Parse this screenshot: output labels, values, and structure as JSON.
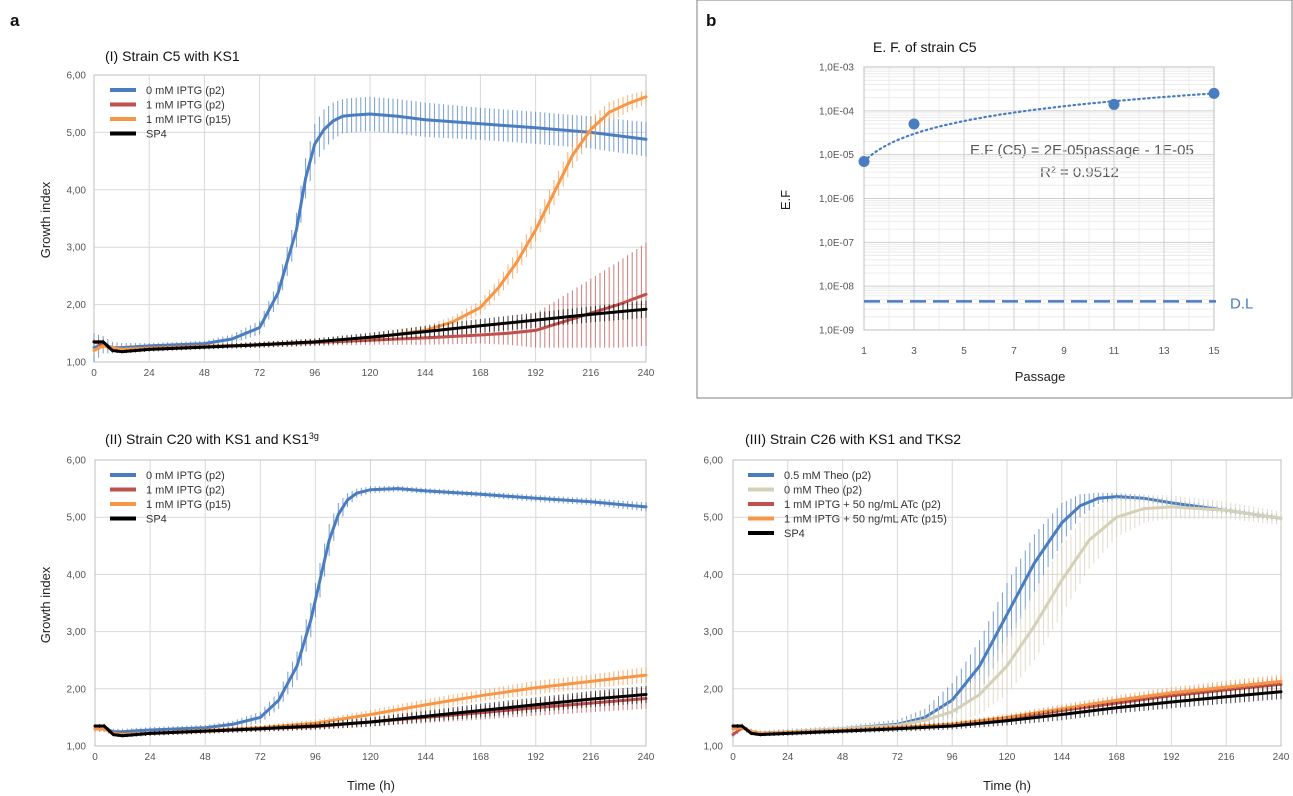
{
  "figure": {
    "panel_a_letter": "a",
    "panel_b_letter": "b"
  },
  "colors": {
    "blue": "#4a7cc0",
    "red": "#c0504d",
    "orange": "#f79646",
    "black": "#000000",
    "beige": "#d5d0b8",
    "grid": "#d9d9d9",
    "dot_blue": "#4a7cc0"
  },
  "chart_data": [
    {
      "id": "I",
      "type": "line",
      "title": "(I) Strain C5 with KS1",
      "xlabel": "",
      "ylabel": "Growth index",
      "xlim": [
        0,
        240
      ],
      "ylim": [
        1,
        6
      ],
      "x_ticks": [
        "0",
        "24",
        "48",
        "72",
        "96",
        "120",
        "144",
        "168",
        "192",
        "216",
        "240"
      ],
      "y_ticks": [
        "1,00",
        "2,00",
        "3,00",
        "4,00",
        "5,00",
        "6,00"
      ],
      "grid": true,
      "legend": "top-left",
      "series": [
        {
          "name": "0 mM IPTG (p2)",
          "color": "#4a7cc0",
          "x": [
            0,
            4,
            8,
            12,
            24,
            48,
            60,
            72,
            80,
            88,
            92,
            96,
            100,
            104,
            108,
            112,
            120,
            132,
            144,
            168,
            192,
            216,
            240
          ],
          "y": [
            1.25,
            1.3,
            1.25,
            1.25,
            1.28,
            1.32,
            1.4,
            1.6,
            2.2,
            3.3,
            4.2,
            4.8,
            5.05,
            5.2,
            5.28,
            5.3,
            5.32,
            5.28,
            5.22,
            5.15,
            5.08,
            5.0,
            4.88
          ],
          "err": [
            0.25,
            0.15,
            0.1,
            0.08,
            0.05,
            0.05,
            0.08,
            0.12,
            0.2,
            0.3,
            0.35,
            0.35,
            0.35,
            0.32,
            0.3,
            0.3,
            0.3,
            0.3,
            0.3,
            0.28,
            0.28,
            0.28,
            0.3
          ]
        },
        {
          "name": "1 mM IPTG (p2)",
          "color": "#c0504d",
          "x": [
            0,
            4,
            8,
            12,
            24,
            48,
            72,
            96,
            120,
            144,
            168,
            180,
            192,
            204,
            216,
            228,
            240
          ],
          "y": [
            1.35,
            1.3,
            1.22,
            1.2,
            1.24,
            1.27,
            1.3,
            1.34,
            1.38,
            1.42,
            1.47,
            1.5,
            1.55,
            1.7,
            1.85,
            2.0,
            2.18
          ],
          "err": [
            0.05,
            0.05,
            0.04,
            0.04,
            0.04,
            0.04,
            0.05,
            0.06,
            0.08,
            0.12,
            0.15,
            0.2,
            0.3,
            0.45,
            0.6,
            0.75,
            0.9
          ]
        },
        {
          "name": "1 mM IPTG (p15)",
          "color": "#f79646",
          "x": [
            0,
            4,
            8,
            12,
            24,
            48,
            72,
            96,
            120,
            144,
            156,
            168,
            176,
            184,
            192,
            200,
            208,
            216,
            224,
            232,
            240
          ],
          "y": [
            1.2,
            1.28,
            1.25,
            1.22,
            1.24,
            1.27,
            1.3,
            1.35,
            1.42,
            1.55,
            1.7,
            1.95,
            2.3,
            2.75,
            3.3,
            3.95,
            4.6,
            5.05,
            5.35,
            5.5,
            5.62
          ],
          "err": [
            0.05,
            0.05,
            0.04,
            0.04,
            0.04,
            0.05,
            0.05,
            0.05,
            0.06,
            0.08,
            0.1,
            0.12,
            0.15,
            0.2,
            0.2,
            0.22,
            0.22,
            0.2,
            0.18,
            0.15,
            0.12
          ]
        },
        {
          "name": "SP4",
          "color": "#000000",
          "x": [
            0,
            4,
            8,
            12,
            24,
            48,
            72,
            96,
            120,
            144,
            168,
            192,
            216,
            240
          ],
          "y": [
            1.35,
            1.35,
            1.2,
            1.18,
            1.22,
            1.26,
            1.3,
            1.35,
            1.43,
            1.53,
            1.63,
            1.73,
            1.83,
            1.92
          ],
          "err": [
            0.03,
            0.04,
            0.03,
            0.03,
            0.04,
            0.04,
            0.05,
            0.06,
            0.08,
            0.1,
            0.12,
            0.13,
            0.14,
            0.15
          ]
        }
      ],
      "legend_entries": [
        "0 mM IPTG (p2)",
        "1 mM IPTG (p2)",
        "1 mM IPTG (p15)",
        "SP4"
      ]
    },
    {
      "id": "II",
      "type": "line",
      "title_main": "(II) Strain C20 with KS1 and  KS1",
      "title_sup": "3g",
      "xlabel": "",
      "ylabel": "Growth index",
      "xlim": [
        0,
        240
      ],
      "ylim": [
        1,
        6
      ],
      "x_ticks": [
        "0",
        "24",
        "48",
        "72",
        "96",
        "120",
        "144",
        "168",
        "192",
        "216",
        "240"
      ],
      "y_ticks": [
        "1,00",
        "2,00",
        "3,00",
        "4,00",
        "5,00",
        "6,00"
      ],
      "grid": true,
      "legend": "top-left",
      "series": [
        {
          "name": "0 mM IPTG (p2)",
          "color": "#4a7cc0",
          "x": [
            0,
            4,
            8,
            12,
            24,
            48,
            60,
            72,
            80,
            88,
            94,
            98,
            102,
            106,
            110,
            114,
            120,
            132,
            144,
            168,
            192,
            216,
            240
          ],
          "y": [
            1.3,
            1.3,
            1.25,
            1.25,
            1.28,
            1.32,
            1.38,
            1.5,
            1.8,
            2.4,
            3.2,
            3.9,
            4.6,
            5.05,
            5.3,
            5.42,
            5.48,
            5.5,
            5.46,
            5.4,
            5.33,
            5.27,
            5.18
          ],
          "err": [
            0.05,
            0.05,
            0.05,
            0.05,
            0.05,
            0.05,
            0.06,
            0.1,
            0.15,
            0.25,
            0.3,
            0.3,
            0.28,
            0.2,
            0.12,
            0.08,
            0.06,
            0.05,
            0.05,
            0.05,
            0.06,
            0.06,
            0.08
          ]
        },
        {
          "name": "1 mM IPTG (p2)",
          "color": "#c0504d",
          "x": [
            0,
            4,
            8,
            12,
            24,
            48,
            72,
            96,
            120,
            144,
            168,
            192,
            216,
            240
          ],
          "y": [
            1.3,
            1.3,
            1.22,
            1.2,
            1.22,
            1.26,
            1.3,
            1.34,
            1.42,
            1.5,
            1.58,
            1.67,
            1.75,
            1.83
          ],
          "err": [
            0.05,
            0.05,
            0.04,
            0.04,
            0.04,
            0.05,
            0.05,
            0.06,
            0.08,
            0.1,
            0.12,
            0.14,
            0.16,
            0.18
          ]
        },
        {
          "name": "1 mM IPTG (p15)",
          "color": "#f79646",
          "x": [
            0,
            4,
            8,
            12,
            24,
            48,
            72,
            96,
            120,
            144,
            168,
            192,
            216,
            240
          ],
          "y": [
            1.3,
            1.3,
            1.22,
            1.2,
            1.22,
            1.27,
            1.32,
            1.4,
            1.55,
            1.72,
            1.88,
            2.02,
            2.13,
            2.24
          ],
          "err": [
            0.05,
            0.05,
            0.04,
            0.04,
            0.04,
            0.05,
            0.05,
            0.06,
            0.08,
            0.1,
            0.1,
            0.12,
            0.12,
            0.14
          ]
        },
        {
          "name": "SP4",
          "color": "#000000",
          "x": [
            0,
            4,
            8,
            12,
            24,
            48,
            72,
            96,
            120,
            144,
            168,
            192,
            216,
            240
          ],
          "y": [
            1.35,
            1.35,
            1.2,
            1.18,
            1.22,
            1.26,
            1.3,
            1.35,
            1.42,
            1.52,
            1.62,
            1.72,
            1.82,
            1.9
          ],
          "err": [
            0.03,
            0.04,
            0.03,
            0.03,
            0.04,
            0.04,
            0.05,
            0.06,
            0.08,
            0.1,
            0.12,
            0.13,
            0.14,
            0.15
          ]
        }
      ],
      "legend_entries": [
        "0 mM IPTG (p2)",
        "1 mM IPTG (p2)",
        "1 mM IPTG (p15)",
        "SP4"
      ]
    },
    {
      "id": "III",
      "type": "line",
      "title": "(III) Strain C26 with KS1 and  TKS2",
      "xlabel": "Time (h)",
      "ylabel": "",
      "xlim": [
        0,
        240
      ],
      "ylim": [
        1,
        6
      ],
      "x_ticks": [
        "0",
        "24",
        "48",
        "72",
        "96",
        "120",
        "144",
        "168",
        "192",
        "216",
        "240"
      ],
      "y_ticks": [
        "1,00",
        "2,00",
        "3,00",
        "4,00",
        "5,00",
        "6,00"
      ],
      "grid": true,
      "legend": "top-left",
      "series": [
        {
          "name": "0.5 mM Theo (p2)",
          "color": "#4a7cc0",
          "x": [
            0,
            4,
            8,
            12,
            24,
            48,
            72,
            84,
            96,
            108,
            120,
            132,
            144,
            152,
            160,
            168,
            180,
            192,
            216,
            240
          ],
          "y": [
            1.3,
            1.32,
            1.25,
            1.22,
            1.25,
            1.3,
            1.38,
            1.5,
            1.8,
            2.4,
            3.3,
            4.2,
            4.9,
            5.2,
            5.33,
            5.36,
            5.33,
            5.25,
            5.12,
            4.98
          ],
          "err": [
            0.05,
            0.05,
            0.05,
            0.05,
            0.05,
            0.05,
            0.08,
            0.15,
            0.3,
            0.45,
            0.55,
            0.5,
            0.35,
            0.2,
            0.1,
            0.06,
            0.06,
            0.06,
            0.06,
            0.06
          ]
        },
        {
          "name": "0 mM Theo (p2)",
          "color": "#d5d0b8",
          "x": [
            0,
            4,
            8,
            12,
            24,
            48,
            72,
            84,
            96,
            108,
            120,
            132,
            144,
            156,
            168,
            180,
            192,
            216,
            240
          ],
          "y": [
            1.3,
            1.32,
            1.25,
            1.22,
            1.25,
            1.3,
            1.36,
            1.45,
            1.6,
            1.9,
            2.4,
            3.1,
            3.9,
            4.6,
            5.0,
            5.15,
            5.18,
            5.12,
            4.98
          ],
          "err": [
            0.05,
            0.05,
            0.05,
            0.05,
            0.05,
            0.05,
            0.06,
            0.12,
            0.2,
            0.35,
            0.5,
            0.6,
            0.6,
            0.5,
            0.35,
            0.25,
            0.2,
            0.15,
            0.12
          ]
        },
        {
          "name": "1 mM IPTG + 50 ng/mL ATc (p2)",
          "color": "#c0504d",
          "x": [
            0,
            4,
            8,
            12,
            24,
            48,
            72,
            96,
            120,
            144,
            168,
            192,
            216,
            240
          ],
          "y": [
            1.2,
            1.32,
            1.25,
            1.22,
            1.23,
            1.27,
            1.32,
            1.38,
            1.48,
            1.62,
            1.75,
            1.88,
            1.98,
            2.08
          ],
          "err": [
            0.05,
            0.05,
            0.04,
            0.04,
            0.04,
            0.04,
            0.05,
            0.05,
            0.06,
            0.08,
            0.09,
            0.1,
            0.11,
            0.12
          ]
        },
        {
          "name": "1 mM IPTG + 50 ng/mL ATc (p15)",
          "color": "#f79646",
          "x": [
            0,
            4,
            8,
            12,
            24,
            48,
            72,
            96,
            120,
            144,
            168,
            192,
            216,
            240
          ],
          "y": [
            1.3,
            1.32,
            1.25,
            1.22,
            1.23,
            1.27,
            1.32,
            1.38,
            1.5,
            1.65,
            1.8,
            1.93,
            2.03,
            2.13
          ],
          "err": [
            0.05,
            0.05,
            0.04,
            0.04,
            0.04,
            0.04,
            0.05,
            0.05,
            0.06,
            0.08,
            0.09,
            0.1,
            0.11,
            0.12
          ]
        },
        {
          "name": "SP4",
          "color": "#000000",
          "x": [
            0,
            4,
            8,
            12,
            24,
            48,
            72,
            96,
            120,
            144,
            168,
            192,
            216,
            240
          ],
          "y": [
            1.35,
            1.35,
            1.22,
            1.2,
            1.22,
            1.26,
            1.3,
            1.35,
            1.44,
            1.55,
            1.67,
            1.77,
            1.86,
            1.95
          ],
          "err": [
            0.03,
            0.04,
            0.03,
            0.03,
            0.04,
            0.04,
            0.05,
            0.06,
            0.08,
            0.1,
            0.1,
            0.11,
            0.12,
            0.13
          ]
        }
      ],
      "legend_entries": [
        "0.5 mM Theo (p2)",
        "0 mM Theo (p2)",
        "1 mM IPTG + 50 ng/mL ATc (p2)",
        "1 mM IPTG + 50 ng/mL ATc (p15)",
        "SP4"
      ]
    },
    {
      "id": "b",
      "type": "scatter",
      "title": "E. F. of strain C5",
      "xlabel": "Passage",
      "ylabel": "E.F",
      "xlim": [
        1,
        15
      ],
      "ylim": [
        "1,0E-09",
        "1,0E-03"
      ],
      "log_scale_y": true,
      "x_ticks": [
        "1",
        "3",
        "5",
        "7",
        "9",
        "11",
        "13",
        "15"
      ],
      "y_ticks": [
        "1,0E-09",
        "1,0E-08",
        "1,0E-07",
        "1,0E-06",
        "1,0E-05",
        "1,0E-04",
        "1,0E-03"
      ],
      "grid": true,
      "points": {
        "x": [
          1,
          3,
          11,
          15
        ],
        "y": [
          7e-06,
          5e-05,
          0.00014,
          0.00025
        ],
        "color": "#4a7cc0"
      },
      "trendline": {
        "style": "dotted",
        "color": "#4a7cc0"
      },
      "detection_limit": {
        "y": 4.5e-09,
        "label": "D.L",
        "style": "dashed",
        "color": "#4a7cc0"
      },
      "equation": "E.F (C5) = 2E-05passage - 1E-05",
      "r2": "R² = 0.9512"
    }
  ]
}
